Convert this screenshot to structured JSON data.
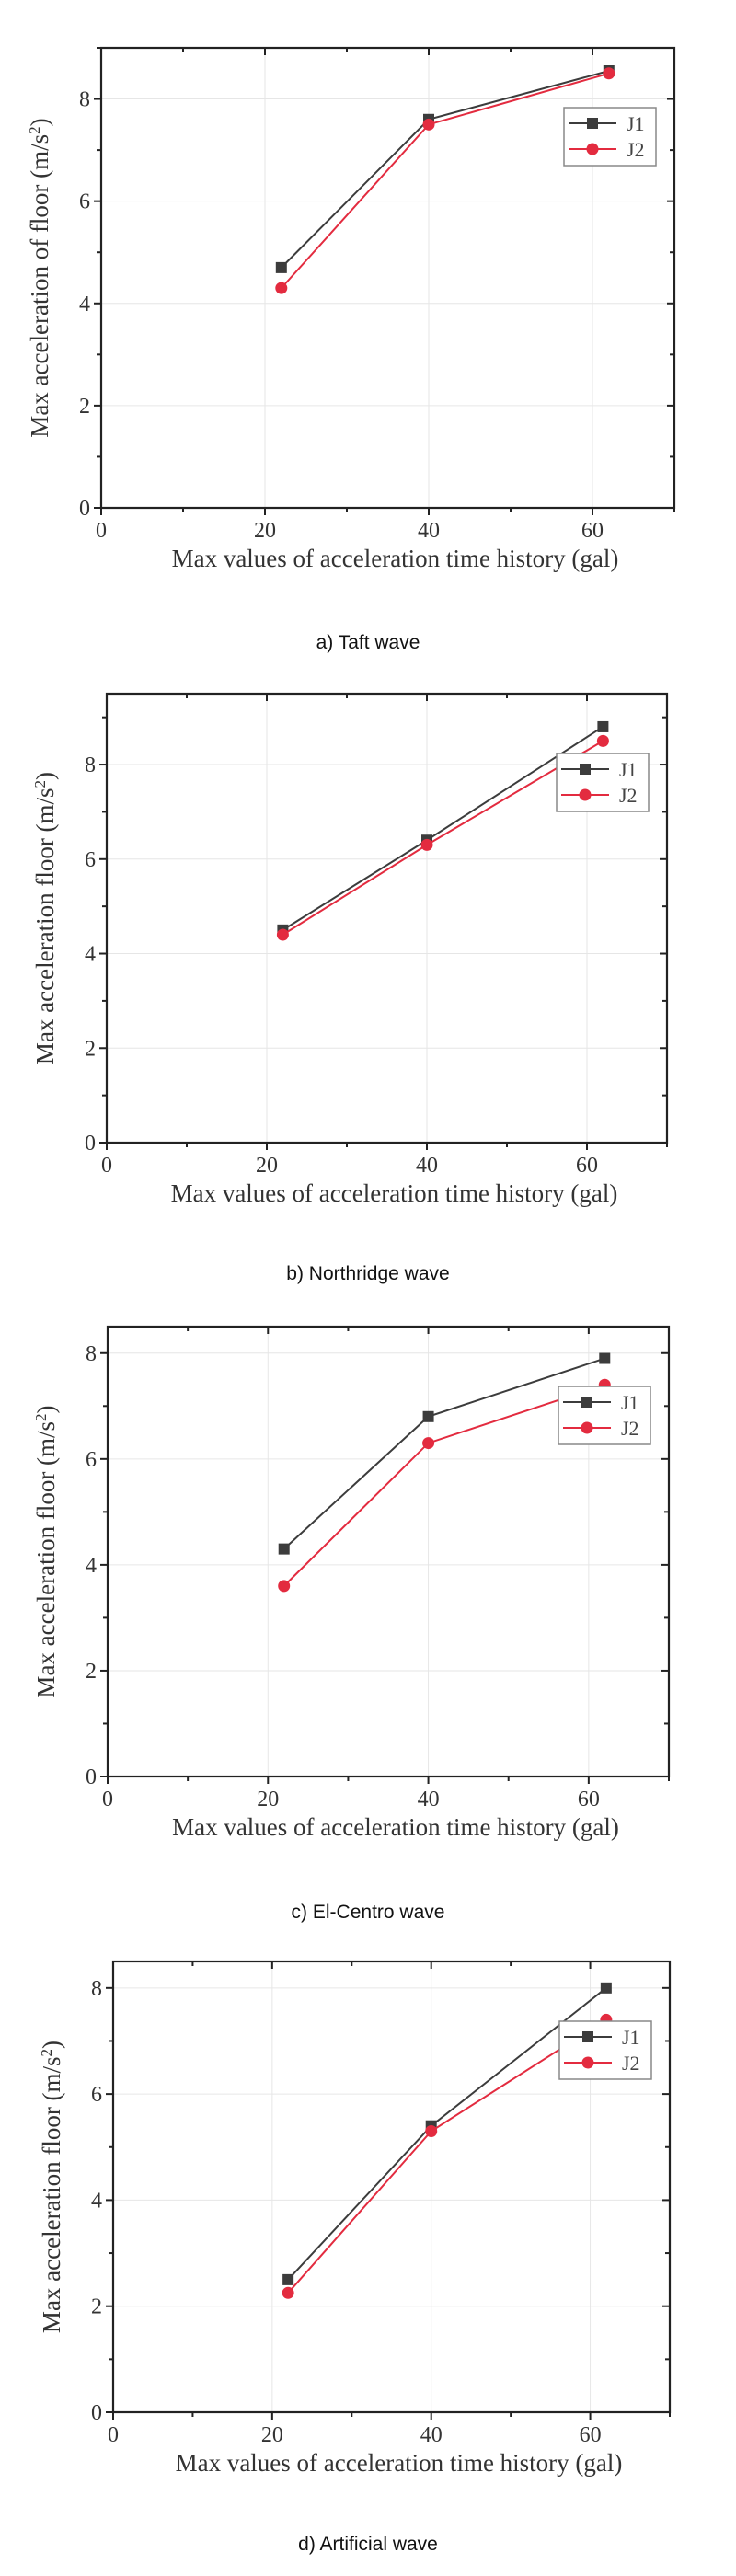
{
  "colors": {
    "J1": "#3c3c3c",
    "J2": "#e32b3f",
    "axis": "#222222",
    "grid": "#e6e6e6"
  },
  "chart_data": [
    {
      "type": "line",
      "caption": "a) Taft wave",
      "xlabel": "Max values of acceleration time history (gal)",
      "ylabel": "Max acceleration of floor (m/s²)",
      "ylabel_main": "Max acceleration of floor (m/s",
      "ylabel_sup": "2",
      "ylabel_end": ")",
      "xlim": [
        0,
        70
      ],
      "ylim": [
        0,
        9
      ],
      "xticks": [
        0,
        20,
        40,
        60
      ],
      "yticks": [
        0,
        2,
        4,
        6,
        8
      ],
      "grid": true,
      "legend_position": "upper-right",
      "x": [
        22,
        40,
        62
      ],
      "series": [
        {
          "name": "J1",
          "marker": "square",
          "values": [
            4.7,
            7.6,
            8.55
          ]
        },
        {
          "name": "J2",
          "marker": "circle",
          "values": [
            4.3,
            7.5,
            8.5
          ]
        }
      ]
    },
    {
      "type": "line",
      "caption": "b) Northridge wave",
      "xlabel": "Max values of acceleration time history (gal)",
      "ylabel": "Max acceleration floor (m/s²)",
      "ylabel_main": "Max acceleration floor (m/s",
      "ylabel_sup": "2",
      "ylabel_end": ")",
      "xlim": [
        0,
        70
      ],
      "ylim": [
        0,
        9.5
      ],
      "xticks": [
        0,
        20,
        40,
        60
      ],
      "yticks": [
        0,
        2,
        4,
        6,
        8
      ],
      "grid": true,
      "legend_position": "upper-right",
      "x": [
        22,
        40,
        62
      ],
      "series": [
        {
          "name": "J1",
          "marker": "square",
          "values": [
            4.5,
            6.4,
            8.8
          ]
        },
        {
          "name": "J2",
          "marker": "circle",
          "values": [
            4.4,
            6.3,
            8.5
          ]
        }
      ]
    },
    {
      "type": "line",
      "caption": "c) El-Centro wave",
      "xlabel": "Max values of acceleration time history (gal)",
      "ylabel": "Max acceleration floor (m/s²)",
      "ylabel_main": "Max acceleration floor (m/s",
      "ylabel_sup": "2",
      "ylabel_end": ")",
      "xlim": [
        0,
        70
      ],
      "ylim": [
        0,
        8.5
      ],
      "xticks": [
        0,
        20,
        40,
        60
      ],
      "yticks": [
        0,
        2,
        4,
        6,
        8
      ],
      "grid": true,
      "legend_position": "upper-right",
      "x": [
        22,
        40,
        62
      ],
      "series": [
        {
          "name": "J1",
          "marker": "square",
          "values": [
            4.3,
            6.8,
            7.9
          ]
        },
        {
          "name": "J2",
          "marker": "circle",
          "values": [
            3.6,
            6.3,
            7.4
          ]
        }
      ]
    },
    {
      "type": "line",
      "caption": "d) Artificial wave",
      "xlabel": "Max values of acceleration time history (gal)",
      "ylabel": "Max acceleration floor (m/s²)",
      "ylabel_main": "Max acceleration floor (m/s",
      "ylabel_sup": "2",
      "ylabel_end": ")",
      "xlim": [
        0,
        70
      ],
      "ylim": [
        0,
        8.5
      ],
      "xticks": [
        0,
        20,
        40,
        60
      ],
      "yticks": [
        0,
        2,
        4,
        6,
        8
      ],
      "grid": true,
      "legend_position": "upper-right",
      "x": [
        22,
        40,
        62
      ],
      "series": [
        {
          "name": "J1",
          "marker": "square",
          "values": [
            2.5,
            5.4,
            8.0
          ]
        },
        {
          "name": "J2",
          "marker": "circle",
          "values": [
            2.25,
            5.3,
            7.4
          ]
        }
      ]
    }
  ]
}
